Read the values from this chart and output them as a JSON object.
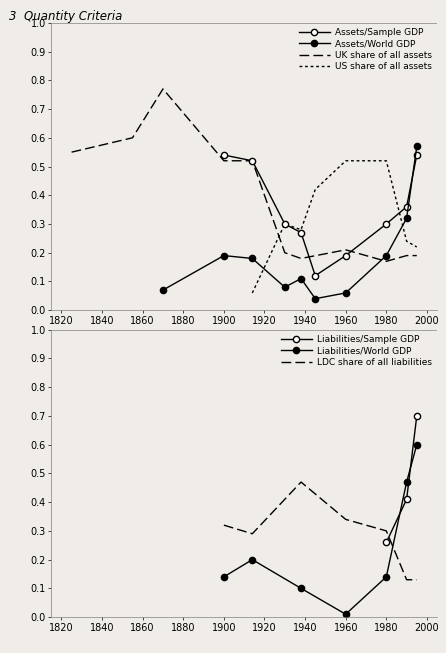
{
  "top_chart": {
    "assets_sample_gdp": {
      "x": [
        1900,
        1914,
        1930,
        1938,
        1945,
        1960,
        1980,
        1990,
        1995
      ],
      "y": [
        0.54,
        0.52,
        0.3,
        0.27,
        0.12,
        0.19,
        0.3,
        0.36,
        0.54
      ],
      "label": "Assets/Sample GDP"
    },
    "assets_world_gdp": {
      "x": [
        1870,
        1900,
        1914,
        1930,
        1938,
        1945,
        1960,
        1980,
        1990,
        1995
      ],
      "y": [
        0.07,
        0.19,
        0.18,
        0.08,
        0.11,
        0.04,
        0.06,
        0.19,
        0.32,
        0.57
      ],
      "label": "Assets/World GDP"
    },
    "uk_share": {
      "x": [
        1825,
        1855,
        1870,
        1900,
        1914,
        1930,
        1938,
        1960,
        1980,
        1990,
        1995
      ],
      "y": [
        0.55,
        0.6,
        0.77,
        0.52,
        0.52,
        0.2,
        0.18,
        0.21,
        0.17,
        0.19,
        0.19
      ],
      "label": "UK share of all assets"
    },
    "us_share": {
      "x": [
        1914,
        1930,
        1938,
        1945,
        1960,
        1980,
        1990,
        1995
      ],
      "y": [
        0.06,
        0.3,
        0.28,
        0.42,
        0.52,
        0.52,
        0.24,
        0.22
      ],
      "label": "US share of all assets"
    },
    "xlim": [
      1815,
      2005
    ],
    "ylim": [
      0.0,
      1.0
    ],
    "xticks": [
      1820,
      1840,
      1860,
      1880,
      1900,
      1920,
      1940,
      1960,
      1980,
      2000
    ],
    "yticks": [
      0.0,
      0.1,
      0.2,
      0.3,
      0.4,
      0.5,
      0.6,
      0.7,
      0.8,
      0.9,
      1.0
    ]
  },
  "bottom_chart": {
    "liabilities_sample_gdp": {
      "x": [
        1980,
        1990,
        1995
      ],
      "y": [
        0.26,
        0.41,
        0.7
      ],
      "label": "Liabilities/Sample GDP"
    },
    "liabilities_world_gdp": {
      "x": [
        1900,
        1914,
        1938,
        1960,
        1980,
        1990,
        1995
      ],
      "y": [
        0.14,
        0.2,
        0.1,
        0.01,
        0.14,
        0.47,
        0.6
      ],
      "label": "Liabilities/World GDP"
    },
    "ldc_share": {
      "x": [
        1900,
        1914,
        1938,
        1960,
        1980,
        1990,
        1995
      ],
      "y": [
        0.32,
        0.29,
        0.47,
        0.34,
        0.3,
        0.13,
        0.13
      ],
      "label": "LDC share of all liabilities"
    },
    "xlim": [
      1815,
      2005
    ],
    "ylim": [
      0.0,
      1.0
    ],
    "xticks": [
      1820,
      1840,
      1860,
      1880,
      1900,
      1920,
      1940,
      1960,
      1980,
      2000
    ],
    "yticks": [
      0.0,
      0.1,
      0.2,
      0.3,
      0.4,
      0.5,
      0.6,
      0.7,
      0.8,
      0.9,
      1.0
    ]
  },
  "header_text": "3  Quantity Criteria",
  "bg_color": "#f0ede8"
}
